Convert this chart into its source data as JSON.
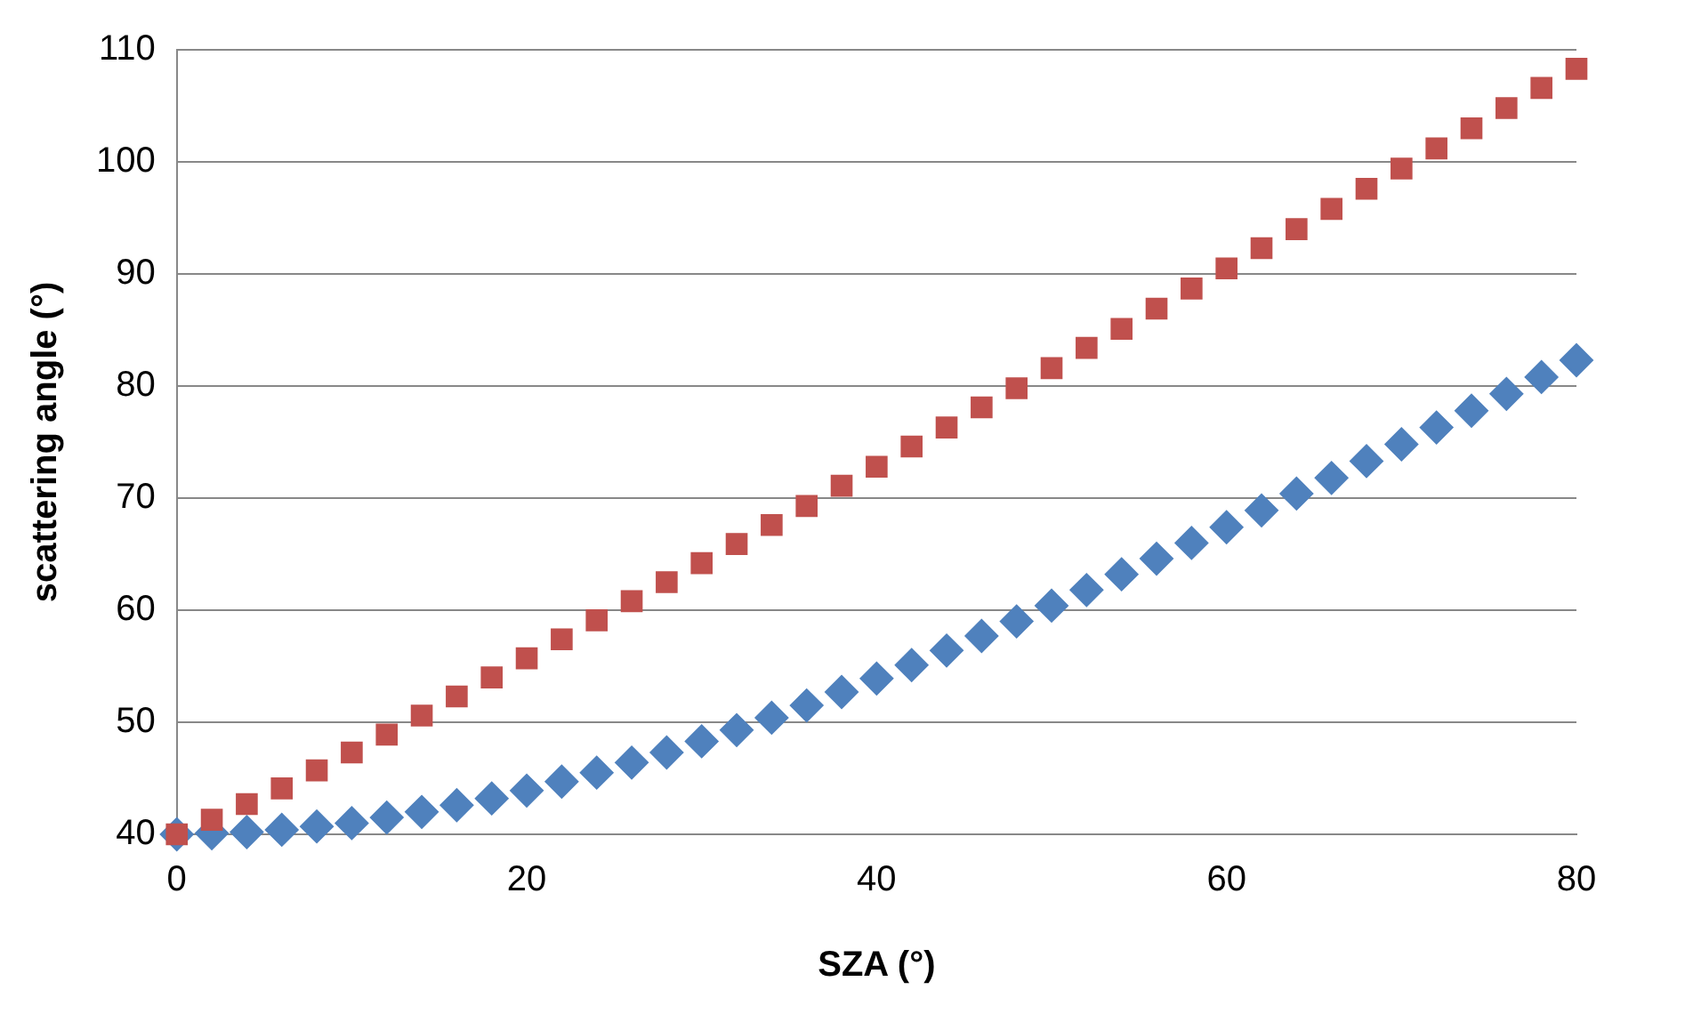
{
  "chart_data": {
    "type": "scatter",
    "xlabel": "SZA (°)",
    "ylabel": "scattering angle (°)",
    "x": [
      0,
      2,
      4,
      6,
      8,
      10,
      12,
      14,
      16,
      18,
      20,
      22,
      24,
      26,
      28,
      30,
      32,
      34,
      36,
      38,
      40,
      42,
      44,
      46,
      48,
      50,
      52,
      54,
      56,
      58,
      60,
      62,
      64,
      66,
      68,
      70,
      72,
      74,
      76,
      78,
      80
    ],
    "series": [
      {
        "color": "#4f81bd",
        "marker": "diamond",
        "values": [
          40,
          40.1,
          40.2,
          40.4,
          40.7,
          41.0,
          41.5,
          42.0,
          42.6,
          43.2,
          43.9,
          44.7,
          45.5,
          46.4,
          47.3,
          48.3,
          49.3,
          50.4,
          51.5,
          52.7,
          53.9,
          55.1,
          56.4,
          57.7,
          59.0,
          60.4,
          61.8,
          63.2,
          64.6,
          66.0,
          67.4,
          68.9,
          70.4,
          71.8,
          73.3,
          74.8,
          76.3,
          77.8,
          79.3,
          80.8,
          82.3
        ]
      },
      {
        "color": "#c0504d",
        "marker": "square",
        "values": [
          40,
          41.3,
          42.7,
          44.1,
          45.7,
          47.3,
          48.9,
          50.6,
          52.3,
          54.0,
          55.7,
          57.4,
          59.1,
          60.8,
          62.5,
          64.2,
          65.9,
          67.6,
          69.3,
          71.1,
          72.8,
          74.6,
          76.3,
          78.1,
          79.8,
          81.6,
          83.4,
          85.1,
          86.9,
          88.7,
          90.5,
          92.3,
          94.0,
          95.8,
          97.6,
          99.4,
          101.2,
          103.0,
          104.8,
          106.6,
          108.3
        ]
      }
    ],
    "xlim": [
      0,
      80
    ],
    "xticks": [
      0,
      20,
      40,
      60,
      80
    ],
    "ylim": [
      40,
      110
    ],
    "yticks": [
      40,
      50,
      60,
      70,
      80,
      90,
      100,
      110
    ],
    "grid": "y",
    "legend": false
  }
}
